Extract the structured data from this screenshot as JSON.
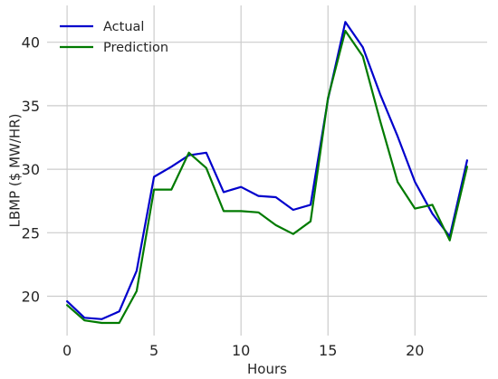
{
  "chart_data": {
    "type": "line",
    "title": "",
    "xlabel": "Hours",
    "ylabel": "LBMP ($ MW/HR)",
    "xlim": [
      -1.15,
      24.15
    ],
    "ylim": [
      16.9,
      42.9
    ],
    "x_ticks": [
      0,
      5,
      10,
      15,
      20
    ],
    "x_tick_labels": [
      "0",
      "5",
      "10",
      "15",
      "20"
    ],
    "y_ticks": [
      20,
      25,
      30,
      35,
      40
    ],
    "y_tick_labels": [
      "20",
      "25",
      "30",
      "35",
      "40"
    ],
    "grid": true,
    "legend_position": "top-left",
    "x": [
      0,
      1,
      2,
      3,
      4,
      5,
      6,
      7,
      8,
      9,
      10,
      11,
      12,
      13,
      14,
      15,
      16,
      17,
      18,
      19,
      20,
      21,
      22,
      23
    ],
    "series": [
      {
        "name": "Actual",
        "color": "#0000cc",
        "values": [
          19.6,
          18.3,
          18.2,
          18.8,
          22.0,
          29.4,
          30.2,
          31.1,
          31.3,
          28.2,
          28.6,
          27.9,
          27.8,
          26.8,
          27.2,
          35.5,
          41.6,
          39.6,
          35.9,
          32.6,
          29.0,
          26.5,
          24.7,
          30.7
        ]
      },
      {
        "name": "Prediction",
        "color": "#007a00",
        "values": [
          19.3,
          18.1,
          17.9,
          17.9,
          20.4,
          28.4,
          28.4,
          31.3,
          30.1,
          26.7,
          26.7,
          26.6,
          25.6,
          24.9,
          25.9,
          35.6,
          40.9,
          38.9,
          33.8,
          29.0,
          26.9,
          27.2,
          24.4,
          30.2
        ]
      }
    ]
  }
}
